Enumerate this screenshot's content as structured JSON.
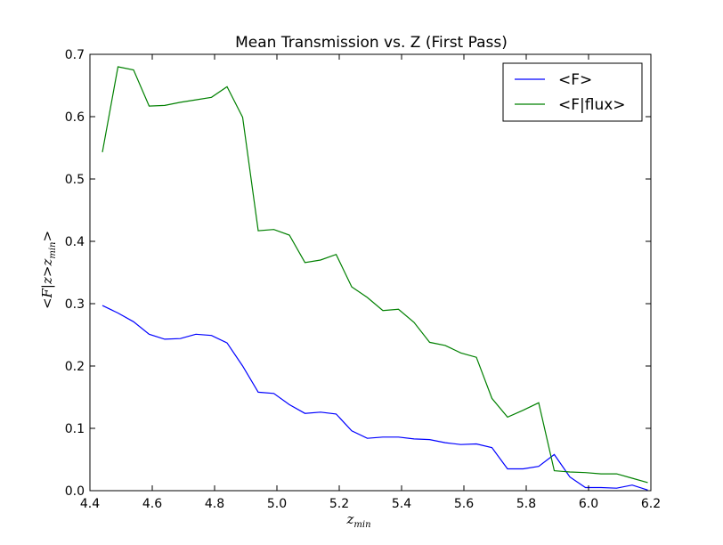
{
  "chart_data": {
    "type": "line",
    "title": "Mean Transmission vs. Z (First Pass)",
    "xlabel": "z",
    "xlabel_sub": "min",
    "ylabel": "<F|z>z",
    "ylabel_sub": "min",
    "ylabel_tail": ">",
    "xlim": [
      4.4,
      6.2
    ],
    "ylim": [
      0.0,
      0.7
    ],
    "xticks": [
      4.4,
      4.6,
      4.8,
      5.0,
      5.2,
      5.4,
      5.6,
      5.8,
      6.0,
      6.2
    ],
    "xtick_labels": [
      "4.4",
      "4.6",
      "4.8",
      "5.0",
      "5.2",
      "5.4",
      "5.6",
      "5.8",
      "6.0",
      "6.2"
    ],
    "yticks": [
      0.0,
      0.1,
      0.2,
      0.3,
      0.4,
      0.5,
      0.6,
      0.7
    ],
    "ytick_labels": [
      "0.0",
      "0.1",
      "0.2",
      "0.3",
      "0.4",
      "0.5",
      "0.6",
      "0.7"
    ],
    "grid": false,
    "legend_position": "top-right",
    "x": [
      4.44,
      4.49,
      4.54,
      4.59,
      4.64,
      4.69,
      4.74,
      4.79,
      4.84,
      4.89,
      4.94,
      4.99,
      5.04,
      5.09,
      5.14,
      5.19,
      5.24,
      5.29,
      5.34,
      5.39,
      5.44,
      5.49,
      5.54,
      5.59,
      5.64,
      5.69,
      5.74,
      5.79,
      5.84,
      5.89,
      5.94,
      5.99,
      6.04,
      6.09,
      6.14,
      6.19
    ],
    "series": [
      {
        "name": "<F>",
        "color": "#0000ff",
        "values": [
          0.297,
          0.285,
          0.271,
          0.251,
          0.243,
          0.244,
          0.251,
          0.249,
          0.237,
          0.2,
          0.158,
          0.156,
          0.138,
          0.124,
          0.126,
          0.123,
          0.096,
          0.084,
          0.086,
          0.086,
          0.083,
          0.082,
          0.077,
          0.074,
          0.075,
          0.069,
          0.035,
          0.035,
          0.039,
          0.058,
          0.022,
          0.005,
          0.005,
          0.004,
          0.009,
          0.001
        ]
      },
      {
        "name": "<F|flux>",
        "color": "#008000",
        "values": [
          0.543,
          0.68,
          0.675,
          0.617,
          0.618,
          0.623,
          0.627,
          0.631,
          0.648,
          0.599,
          0.417,
          0.419,
          0.41,
          0.366,
          0.37,
          0.379,
          0.327,
          0.31,
          0.289,
          0.291,
          0.27,
          0.238,
          0.233,
          0.221,
          0.214,
          0.148,
          0.118,
          0.129,
          0.141,
          0.032,
          0.03,
          0.029,
          0.027,
          0.027,
          0.02,
          0.013
        ]
      }
    ]
  }
}
